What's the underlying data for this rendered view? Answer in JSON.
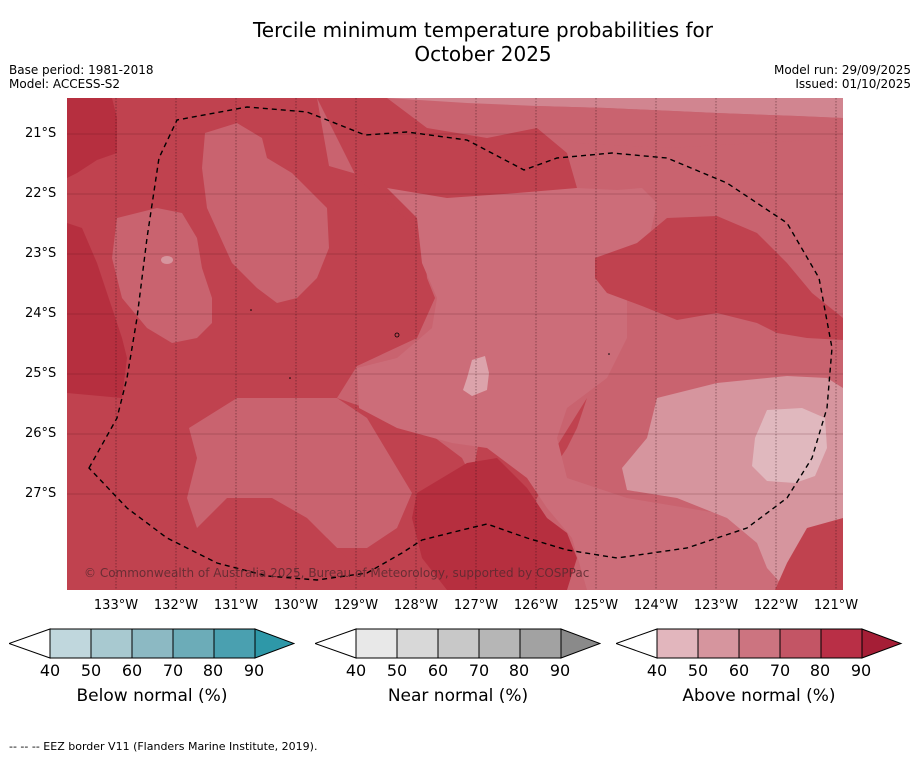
{
  "title_line1": "Tercile minimum temperature probabilities for",
  "title_line2": "October 2025",
  "meta_left": {
    "base_period": "Base period: 1981-2018",
    "model": "Model: ACCESS-S2"
  },
  "meta_right": {
    "model_run": "Model run: 29/09/2025",
    "issued": "Issued: 01/10/2025"
  },
  "map": {
    "lat_labels": [
      "21°S",
      "22°S",
      "23°S",
      "24°S",
      "25°S",
      "26°S",
      "27°S"
    ],
    "lon_labels": [
      "133°W",
      "132°W",
      "131°W",
      "130°W",
      "129°W",
      "128°W",
      "127°W",
      "126°W",
      "125°W",
      "124°W",
      "123°W",
      "122°W",
      "121°W"
    ],
    "copyright": "© Commonwealth of Australia 2025, Bureau of Meteorology, supported by COSPPac",
    "colors": {
      "c50": "#d4959e",
      "c60": "#c9636f",
      "c70": "#c0424f",
      "c80": "#b62f3f",
      "c90": "#a41b33",
      "c40": "#e0b8be"
    }
  },
  "legends": [
    {
      "name": "below",
      "title": "Below normal (%)",
      "ticks": [
        "40",
        "50",
        "60",
        "70",
        "80",
        "90"
      ],
      "colors": [
        "#c0d7dd",
        "#a8c9d0",
        "#8cb9c3",
        "#6cacb8",
        "#4aa0b0",
        "#2e98a8"
      ]
    },
    {
      "name": "near",
      "title": "Near normal (%)",
      "ticks": [
        "40",
        "50",
        "60",
        "70",
        "80",
        "90"
      ],
      "colors": [
        "#e8e8e8",
        "#d8d8d8",
        "#c8c8c8",
        "#b6b6b6",
        "#a2a2a2",
        "#8a8a8a"
      ]
    },
    {
      "name": "above",
      "title": "Above normal (%)",
      "ticks": [
        "40",
        "50",
        "60",
        "70",
        "80",
        "90"
      ],
      "colors": [
        "#e2b6bd",
        "#d6959e",
        "#cc7480",
        "#c35565",
        "#b92f46",
        "#a51e36"
      ]
    }
  ],
  "footer": "--  --  -- EEZ border V11 (Flanders Marine Institute, 2019)."
}
